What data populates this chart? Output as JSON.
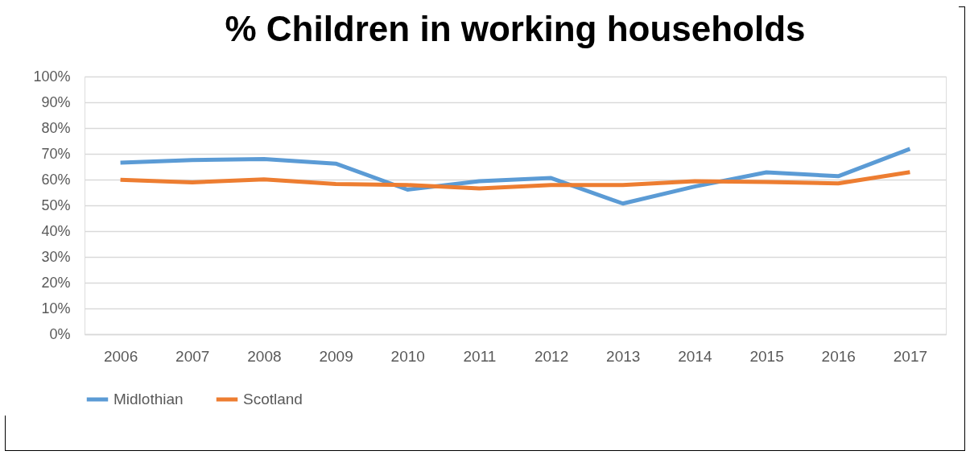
{
  "chart_data": {
    "type": "line",
    "title": "% Children in working households",
    "categories": [
      "2006",
      "2007",
      "2008",
      "2009",
      "2010",
      "2011",
      "2012",
      "2013",
      "2014",
      "2015",
      "2016",
      "2017"
    ],
    "series": [
      {
        "name": "Midlothian",
        "color": "#5b9bd5",
        "values": [
          66.6,
          67.6,
          68,
          66.2,
          56.1,
          59.4,
          60.6,
          50.7,
          57.3,
          62.8,
          61.3,
          71.9
        ]
      },
      {
        "name": "Scotland",
        "color": "#ed7d31",
        "values": [
          59.9,
          58.9,
          60.1,
          58.3,
          57.9,
          56.6,
          57.9,
          57.9,
          59.4,
          59.1,
          58.5,
          62.9
        ]
      }
    ],
    "ylim": [
      0,
      100
    ],
    "yticks": [
      {
        "value": 0,
        "label": "0%"
      },
      {
        "value": 10,
        "label": "10%"
      },
      {
        "value": 20,
        "label": "20%"
      },
      {
        "value": 30,
        "label": "30%"
      },
      {
        "value": 40,
        "label": "40%"
      },
      {
        "value": 50,
        "label": "50%"
      },
      {
        "value": 60,
        "label": "60%"
      },
      {
        "value": 70,
        "label": "70%"
      },
      {
        "value": 80,
        "label": "80%"
      },
      {
        "value": 90,
        "label": "90%"
      },
      {
        "value": 100,
        "label": "100%"
      }
    ],
    "grid": "y",
    "legend": "bottom"
  }
}
